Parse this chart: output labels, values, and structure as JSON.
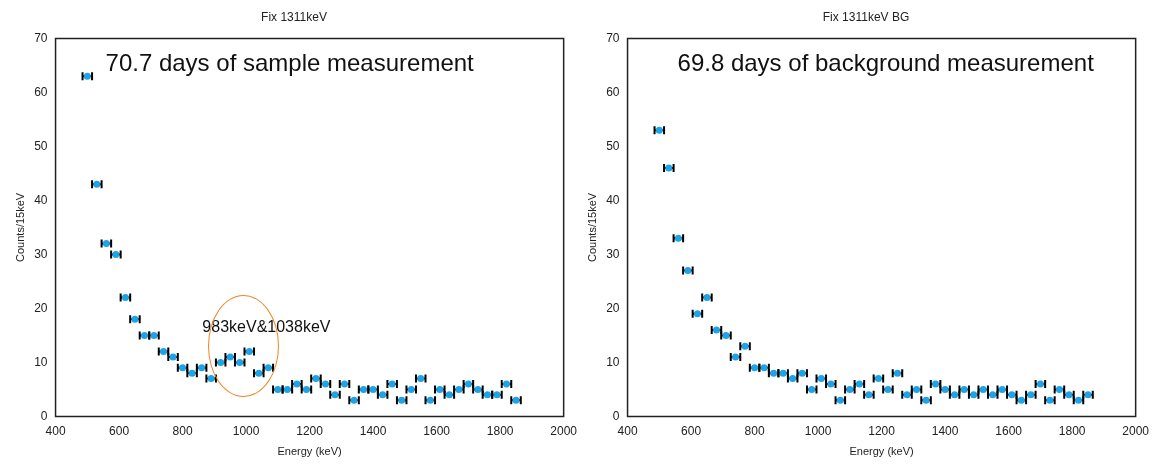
{
  "chart_data": [
    {
      "type": "scatter",
      "title": "Fix 1311keV",
      "xlabel": "Energy (keV)",
      "ylabel": "Counts/15keV",
      "x": [
        500,
        530,
        560,
        590,
        620,
        650,
        680,
        710,
        740,
        770,
        800,
        830,
        860,
        890,
        920,
        950,
        980,
        1010,
        1040,
        1070,
        1100,
        1130,
        1160,
        1190,
        1220,
        1250,
        1280,
        1310,
        1340,
        1370,
        1400,
        1430,
        1460,
        1490,
        1520,
        1550,
        1580,
        1610,
        1640,
        1670,
        1700,
        1730,
        1760,
        1790,
        1820,
        1850
      ],
      "series": [
        {
          "color": "#1ea3e6",
          "values": [
            63,
            43,
            32,
            30,
            22,
            18,
            15,
            15,
            12,
            11,
            9,
            8,
            9,
            7,
            10,
            11,
            10,
            12,
            8,
            9,
            5,
            5,
            6,
            5,
            7,
            6,
            4,
            6,
            3,
            5,
            5,
            4,
            6,
            3,
            5,
            7,
            3,
            5,
            4,
            5,
            6,
            5,
            4,
            4,
            6,
            3
          ],
          "xerrors": [
            15,
            15,
            15,
            15,
            15,
            15,
            15,
            15,
            15,
            15,
            15,
            15,
            15,
            15,
            15,
            15,
            15,
            15,
            15,
            15,
            15,
            15,
            15,
            15,
            15,
            15,
            15,
            15,
            15,
            15,
            15,
            15,
            15,
            15,
            15,
            15,
            15,
            15,
            15,
            15,
            15,
            15,
            15,
            15,
            15,
            15
          ]
        }
      ],
      "xlim": [
        400,
        2000
      ],
      "xticks": [
        400,
        600,
        800,
        1000,
        1200,
        1400,
        1600,
        1800,
        2000
      ],
      "ylim": [
        0,
        70
      ],
      "yticks": [
        0,
        10,
        20,
        30,
        40,
        50,
        60,
        70
      ],
      "grid": false,
      "legend": false,
      "marker": "circle",
      "annotations": [
        "70.7 days of sample measurement",
        "983keV&1038keV"
      ]
    },
    {
      "type": "scatter",
      "title": "Fix 1311keV BG",
      "xlabel": "Energy (keV)",
      "ylabel": "Counts/15keV",
      "x": [
        500,
        530,
        560,
        590,
        620,
        650,
        680,
        710,
        740,
        770,
        800,
        830,
        860,
        890,
        920,
        950,
        980,
        1010,
        1040,
        1070,
        1100,
        1130,
        1160,
        1190,
        1220,
        1250,
        1280,
        1310,
        1340,
        1370,
        1400,
        1430,
        1460,
        1490,
        1520,
        1550,
        1580,
        1610,
        1640,
        1670,
        1700,
        1730,
        1760,
        1790,
        1820,
        1850
      ],
      "series": [
        {
          "color": "#1ea3e6",
          "values": [
            53,
            46,
            33,
            27,
            19,
            22,
            16,
            15,
            11,
            13,
            9,
            9,
            8,
            8,
            7,
            8,
            5,
            7,
            6,
            3,
            5,
            6,
            4,
            7,
            5,
            8,
            4,
            5,
            3,
            6,
            5,
            4,
            5,
            4,
            5,
            4,
            5,
            4,
            3,
            4,
            6,
            3,
            5,
            4,
            3,
            4
          ],
          "xerrors": [
            15,
            15,
            15,
            15,
            15,
            15,
            15,
            15,
            15,
            15,
            15,
            15,
            15,
            15,
            15,
            15,
            15,
            15,
            15,
            15,
            15,
            15,
            15,
            15,
            15,
            15,
            15,
            15,
            15,
            15,
            15,
            15,
            15,
            15,
            15,
            15,
            15,
            15,
            15,
            15,
            15,
            15,
            15,
            15,
            15,
            15
          ]
        }
      ],
      "xlim": [
        400,
        2000
      ],
      "xticks": [
        400,
        600,
        800,
        1000,
        1200,
        1400,
        1600,
        1800,
        2000
      ],
      "ylim": [
        0,
        70
      ],
      "yticks": [
        0,
        10,
        20,
        30,
        40,
        50,
        60,
        70
      ],
      "grid": false,
      "legend": false,
      "marker": "circle",
      "annotations": [
        "69.8 days of background measurement"
      ]
    }
  ]
}
